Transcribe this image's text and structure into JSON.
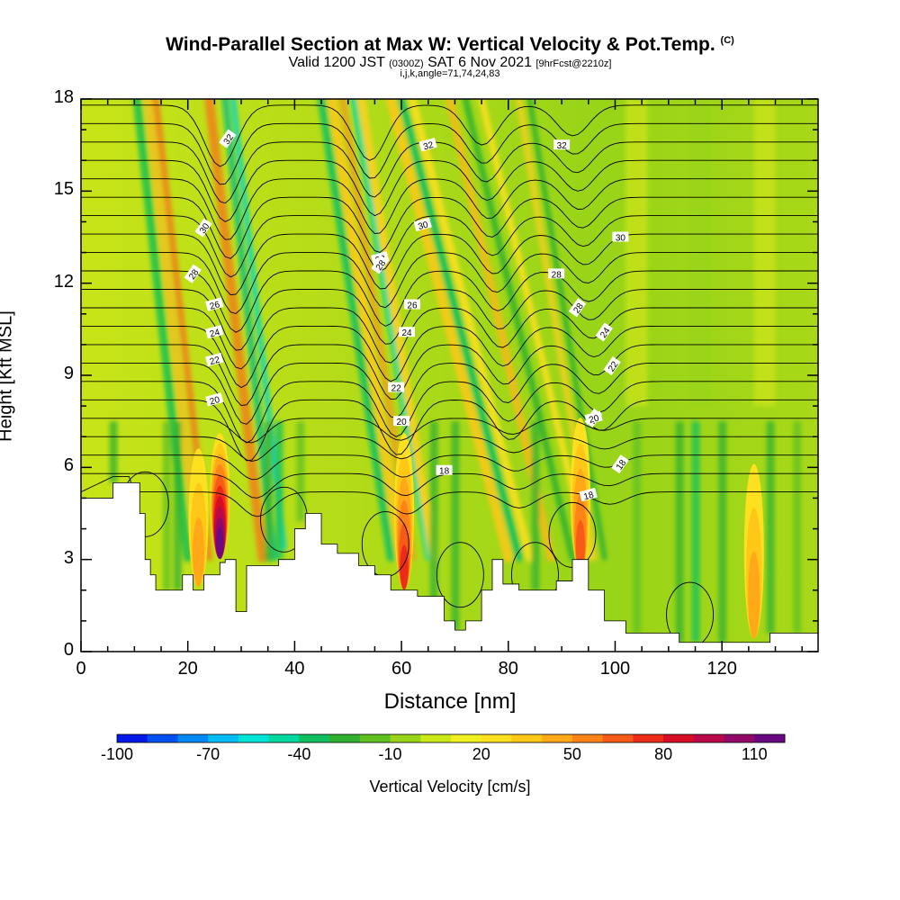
{
  "title": "Wind-Parallel Section at Max W: Vertical Velocity & Pot.Temp.",
  "title_mark": "(C)",
  "subtitle_main": "Valid 1200 JST",
  "subtitle_utc": "(0300Z)",
  "subtitle_date": "SAT 6 Nov 2021",
  "subtitle_fcst": "[9hrFcst@2210z]",
  "subsubtitle": "i,j,k,angle=71,74,24,83",
  "chart_data": {
    "type": "heatmap",
    "xlabel": "Distance [nm]",
    "ylabel": "Height [Kft MSL]",
    "xlim": [
      0,
      138
    ],
    "ylim": [
      0,
      18
    ],
    "xticks": [
      0,
      20,
      40,
      60,
      80,
      100,
      120
    ],
    "yticks": [
      0,
      3,
      6,
      9,
      12,
      15,
      18
    ],
    "colorbar": {
      "label": "Vertical Velocity [cm/s]",
      "range": [
        -100,
        120
      ],
      "step": 10,
      "tick_labels": [
        "-100",
        "-70",
        "-40",
        "-10",
        "20",
        "50",
        "80",
        "110"
      ],
      "colors": [
        "#0018e8",
        "#0050f0",
        "#0088f4",
        "#00bcf4",
        "#00e4d8",
        "#00d8a0",
        "#10c060",
        "#30b030",
        "#60c020",
        "#98d418",
        "#cce818",
        "#f0f020",
        "#fde020",
        "#ffc818",
        "#ffa818",
        "#ff8418",
        "#f85a18",
        "#ec2c18",
        "#d80c24",
        "#b8084a",
        "#900868",
        "#6a0882"
      ]
    },
    "theta_contour_labels": [
      "32",
      "32",
      "32",
      "30",
      "30",
      "30",
      "28",
      "28",
      "28",
      "28",
      "26",
      "26",
      "28",
      "24",
      "24",
      "24",
      "22",
      "22",
      "22",
      "20",
      "20",
      "20",
      "20",
      "18",
      "18",
      "18"
    ],
    "terrain_height_kft": [
      [
        0,
        5.0
      ],
      [
        6,
        5.5
      ],
      [
        9,
        5.5
      ],
      [
        11,
        4.5
      ],
      [
        12,
        3.0
      ],
      [
        13,
        2.5
      ],
      [
        14,
        2.0
      ],
      [
        18,
        2.0
      ],
      [
        19,
        2.5
      ],
      [
        21,
        2.0
      ],
      [
        22,
        2.0
      ],
      [
        23,
        2.5
      ],
      [
        24,
        2.5
      ],
      [
        26,
        2.9
      ],
      [
        27,
        3.0
      ],
      [
        29,
        1.3
      ],
      [
        31,
        2.8
      ],
      [
        37,
        3.0
      ],
      [
        40,
        4.0
      ],
      [
        42,
        4.5
      ],
      [
        45,
        3.5
      ],
      [
        48,
        3.2
      ],
      [
        52,
        2.8
      ],
      [
        55,
        2.5
      ],
      [
        58,
        2.0
      ],
      [
        63,
        1.8
      ],
      [
        68,
        1.0
      ],
      [
        70,
        0.7
      ],
      [
        72,
        1.0
      ],
      [
        75,
        2.0
      ],
      [
        77,
        3.0
      ],
      [
        79,
        2.2
      ],
      [
        82,
        2.0
      ],
      [
        86,
        2.0
      ],
      [
        89,
        2.3
      ],
      [
        92,
        3.0
      ],
      [
        95,
        2.0
      ],
      [
        98,
        1.0
      ],
      [
        102,
        0.6
      ],
      [
        110,
        0.6
      ],
      [
        112,
        0.3
      ],
      [
        127,
        0.3
      ],
      [
        129,
        0.6
      ],
      [
        138,
        0.6
      ]
    ],
    "updrafts": [
      {
        "x": 26.0,
        "w": 120,
        "height": 4.0
      },
      {
        "x": 60.5,
        "w": 75,
        "height": 4.0
      },
      {
        "x": 93.5,
        "w": 60,
        "height": 4.5
      },
      {
        "x": 22.0,
        "w": 40,
        "height": 3.5
      },
      {
        "x": 126.0,
        "w": 40,
        "height": 3.0
      }
    ]
  }
}
